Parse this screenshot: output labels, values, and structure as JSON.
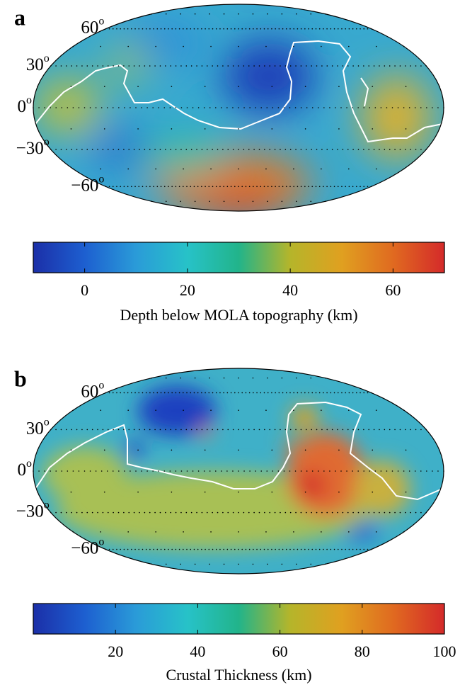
{
  "panels": [
    {
      "label": "a",
      "lat_labels": [
        {
          "value": 60,
          "label": "60"
        },
        {
          "value": 30,
          "label": "30"
        },
        {
          "value": 0,
          "label": "0"
        },
        {
          "value": -30,
          "label": "−30"
        },
        {
          "value": -60,
          "label": "−60"
        }
      ],
      "degree_mark": "o",
      "colorbar": {
        "lim": [
          -10,
          70
        ],
        "ticks": [
          0,
          20,
          40,
          60
        ],
        "label": "Depth below MOLA topography (km)"
      }
    },
    {
      "label": "b",
      "lat_labels": [
        {
          "value": 60,
          "label": "60"
        },
        {
          "value": 30,
          "label": "30"
        },
        {
          "value": 0,
          "label": "0"
        },
        {
          "value": -30,
          "label": "−30"
        },
        {
          "value": -60,
          "label": "−60"
        }
      ],
      "degree_mark": "o",
      "colorbar": {
        "lim": [
          0,
          100
        ],
        "ticks": [
          20,
          40,
          60,
          80,
          100
        ],
        "label": "Crustal Thickness (km)"
      }
    }
  ],
  "colormap": [
    "#1b2fa8",
    "#1d5fd0",
    "#2a9bd8",
    "#27c2c8",
    "#22b48a",
    "#b5b52a",
    "#e0a020",
    "#e06a20",
    "#d42a2a"
  ]
}
